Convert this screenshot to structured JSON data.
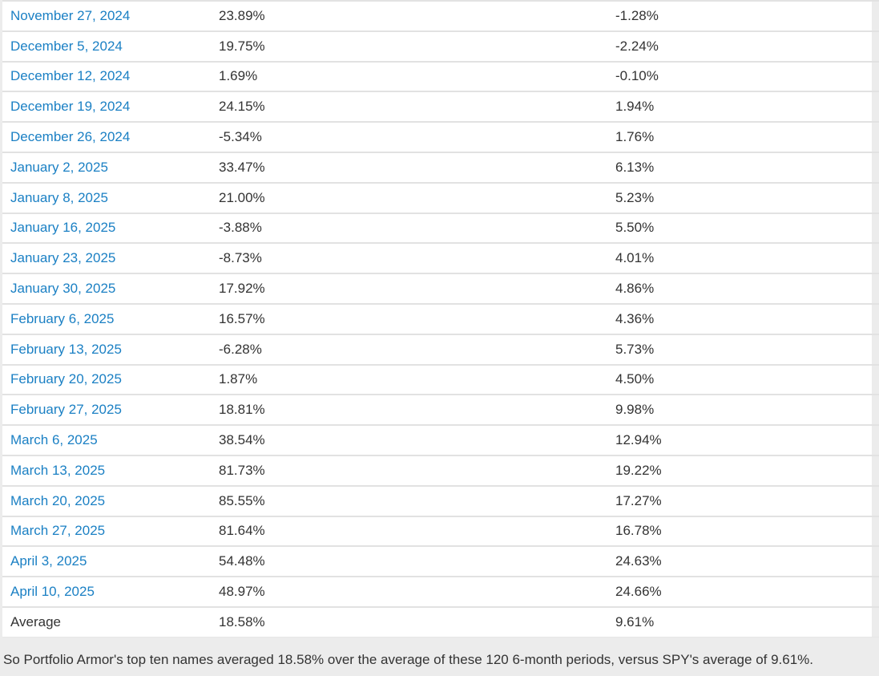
{
  "colors": {
    "page_background": "#ececec",
    "table_background": "#ffffff",
    "row_border": "#e2e2e2",
    "link_blue": "#1b80c4",
    "text": "#333333"
  },
  "chart_data": {
    "type": "table",
    "rows": [
      {
        "date": "November 27, 2024",
        "top_ten_return": "23.89%",
        "spy_return": "-1.28%"
      },
      {
        "date": "December 5, 2024",
        "top_ten_return": "19.75%",
        "spy_return": "-2.24%"
      },
      {
        "date": "December 12, 2024",
        "top_ten_return": "1.69%",
        "spy_return": "-0.10%"
      },
      {
        "date": "December 19, 2024",
        "top_ten_return": "24.15%",
        "spy_return": "1.94%"
      },
      {
        "date": "December 26, 2024",
        "top_ten_return": "-5.34%",
        "spy_return": "1.76%"
      },
      {
        "date": "January 2, 2025",
        "top_ten_return": "33.47%",
        "spy_return": "6.13%"
      },
      {
        "date": "January 8, 2025",
        "top_ten_return": "21.00%",
        "spy_return": "5.23%"
      },
      {
        "date": "January 16, 2025",
        "top_ten_return": "-3.88%",
        "spy_return": "5.50%"
      },
      {
        "date": "January 23, 2025",
        "top_ten_return": "-8.73%",
        "spy_return": "4.01%"
      },
      {
        "date": "January 30, 2025",
        "top_ten_return": "17.92%",
        "spy_return": "4.86%"
      },
      {
        "date": "February 6, 2025",
        "top_ten_return": "16.57%",
        "spy_return": "4.36%"
      },
      {
        "date": "February 13, 2025",
        "top_ten_return": "-6.28%",
        "spy_return": "5.73%"
      },
      {
        "date": "February 20, 2025",
        "top_ten_return": "1.87%",
        "spy_return": "4.50%"
      },
      {
        "date": "February 27, 2025",
        "top_ten_return": "18.81%",
        "spy_return": "9.98%"
      },
      {
        "date": "March 6, 2025",
        "top_ten_return": "38.54%",
        "spy_return": "12.94%"
      },
      {
        "date": "March 13, 2025",
        "top_ten_return": "81.73%",
        "spy_return": "19.22%"
      },
      {
        "date": "March 20, 2025",
        "top_ten_return": "85.55%",
        "spy_return": "17.27%"
      },
      {
        "date": "March 27, 2025",
        "top_ten_return": "81.64%",
        "spy_return": "16.78%"
      },
      {
        "date": "April 3, 2025",
        "top_ten_return": "54.48%",
        "spy_return": "24.63%"
      },
      {
        "date": "April 10, 2025",
        "top_ten_return": "48.97%",
        "spy_return": "24.66%"
      }
    ],
    "average_row": {
      "label": "Average",
      "top_ten_return": "18.58%",
      "spy_return": "9.61%"
    }
  },
  "footer": {
    "text": "So Portfolio Armor's top ten names averaged 18.58% over the average of these 120 6-month periods, versus SPY's average of 9.61%."
  }
}
